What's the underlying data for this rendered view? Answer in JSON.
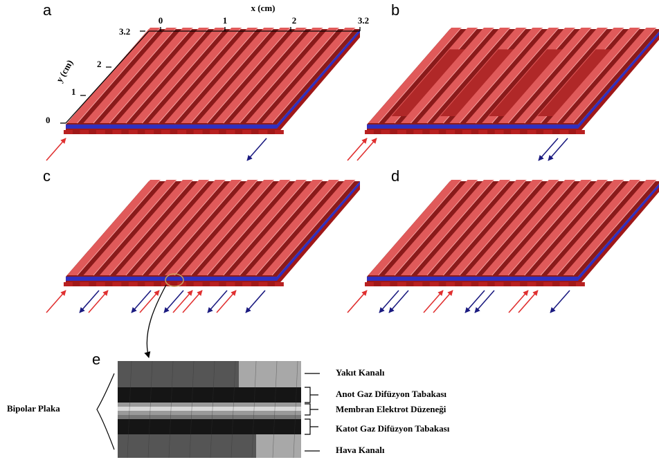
{
  "panels": [
    {
      "label": "a"
    },
    {
      "label": "b"
    },
    {
      "label": "c"
    },
    {
      "label": "d"
    }
  ],
  "axes": {
    "x": {
      "label": "x (cm)",
      "ticks": [
        "0",
        "1",
        "2",
        "3.2"
      ]
    },
    "y": {
      "label": "y (cm)",
      "ticks": [
        "0",
        "1",
        "2",
        "3.2"
      ]
    }
  },
  "cross_section": {
    "label": "e",
    "group_label": "Bipolar Plaka",
    "layers": [
      "Yakıt Kanalı",
      "Anot Gaz Difüzyon Tabakası",
      "Membran Elektrot Düzeneği",
      "Katot Gaz Difüzyon Tabakası",
      "Hava Kanalı"
    ]
  }
}
